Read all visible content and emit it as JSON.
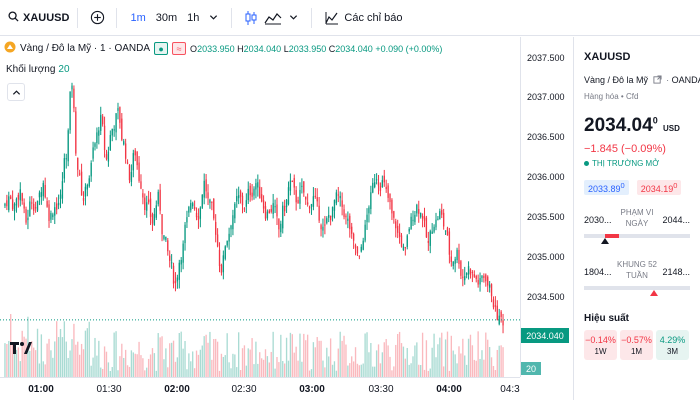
{
  "toolbar": {
    "symbol": "XAUUSD",
    "intervals": [
      "1m",
      "30m",
      "1h"
    ],
    "active_interval": "1m",
    "indicators_label": "Các chỉ báo"
  },
  "legend": {
    "title": "Vàng / Đô la Mỹ · 1 · OANDA",
    "o_label": "O",
    "o": "2033.950",
    "h_label": "H",
    "h": "2034.040",
    "l_label": "L",
    "l": "2033.950",
    "c_label": "C",
    "c": "2034.040",
    "change": "+0.090 (+0.00%)",
    "volume_label": "Khối lượng",
    "volume_value": "20"
  },
  "price_axis": [
    "2037.500",
    "2037.000",
    "2036.500",
    "2036.000",
    "2035.500",
    "2035.000",
    "2034.500"
  ],
  "current_price_tag": "2034.040",
  "volume_tag": "20",
  "time_axis": [
    "01:00",
    "01:30",
    "02:00",
    "02:30",
    "03:00",
    "03:30",
    "04:00",
    "04:3"
  ],
  "panel": {
    "symbol": "XAUUSD",
    "description": "Vàng / Đô la Mỹ",
    "exchange": "OANDA",
    "category": "Hàng hóa • Cfd",
    "price": "2034.04",
    "price_sup": "0",
    "currency": "USD",
    "change": "−1.845 (−0.09%)",
    "market_status": "THỊ TRƯỜNG MỞ",
    "bid": "2033.89",
    "bid_sup": "0",
    "ask": "2034.19",
    "ask_sup": "0",
    "day_range": {
      "low": "2030...",
      "high": "2044...",
      "label": "PHẠM VI NGÀY",
      "position": 0.2
    },
    "week52_range": {
      "low": "1804...",
      "high": "2148...",
      "label": "KHUNG 52 TUẦN",
      "position": 0.66
    },
    "performance_title": "Hiệu suất",
    "performance": [
      {
        "value": "−0.14%",
        "period": "1W",
        "trend": "neg"
      },
      {
        "value": "−0.57%",
        "period": "1M",
        "trend": "neg"
      },
      {
        "value": "4.29%",
        "period": "3M",
        "trend": "pos"
      }
    ]
  },
  "colors": {
    "up": "#089981",
    "down": "#f23645",
    "accent": "#2962ff"
  },
  "chart_data": {
    "type": "candlestick",
    "title": "Vàng / Đô la Mỹ · 1 · OANDA",
    "ylim": [
      2034.0,
      2037.6
    ],
    "x_range": [
      "00:47",
      "04:35"
    ],
    "close_series": [
      2035.6,
      2035.5,
      2035.7,
      2035.3,
      2035.6,
      2035.5,
      2035.8,
      2035.4,
      2035.5,
      2035.6,
      2036.2,
      2037.1,
      2036.0,
      2035.6,
      2035.9,
      2036.3,
      2036.6,
      2036.1,
      2036.5,
      2036.7,
      2036.3,
      2035.9,
      2036.2,
      2035.8,
      2035.5,
      2035.3,
      2035.6,
      2035.1,
      2034.8,
      2034.5,
      2034.9,
      2035.3,
      2035.6,
      2035.4,
      2035.8,
      2035.5,
      2035.2,
      2034.7,
      2035.1,
      2035.4,
      2035.6,
      2035.5,
      2035.7,
      2035.8,
      2035.6,
      2035.4,
      2035.5,
      2035.2,
      2035.5,
      2035.8,
      2035.6,
      2035.7,
      2035.5,
      2035.6,
      2035.4,
      2035.2,
      2035.4,
      2035.6,
      2035.5,
      2035.3,
      2035.0,
      2034.8,
      2035.2,
      2035.6,
      2035.9,
      2035.8,
      2035.6,
      2035.3,
      2035.1,
      2034.9,
      2035.3,
      2035.5,
      2035.4,
      2035.0,
      2035.3,
      2035.4,
      2035.2,
      2034.8,
      2034.9,
      2034.6,
      2034.7,
      2034.6,
      2034.5,
      2034.6,
      2034.4,
      2034.1,
      2034.04
    ],
    "volume_max": 20
  }
}
